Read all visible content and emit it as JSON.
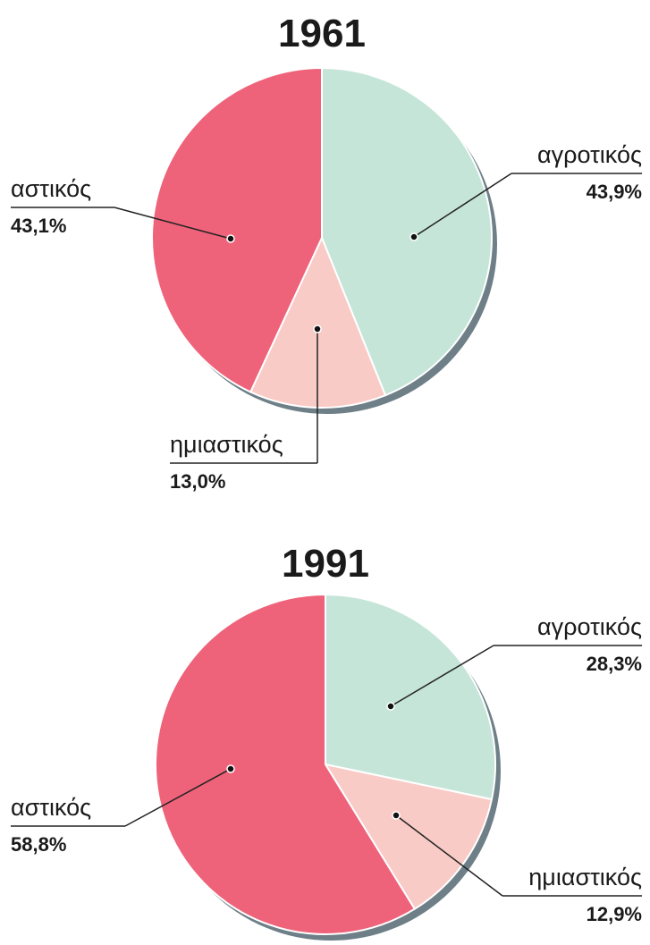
{
  "chart_data": [
    {
      "type": "pie",
      "title": "1961",
      "categories": [
        "αγροτικός",
        "ημιαστικός",
        "αστικός"
      ],
      "values": [
        43.9,
        13.0,
        43.1
      ],
      "value_labels": [
        "43,9%",
        "13,0%",
        "43,1%"
      ],
      "colors": [
        "#c6e5d9",
        "#f9cbc6",
        "#ee637a"
      ]
    },
    {
      "type": "pie",
      "title": "1991",
      "categories": [
        "αγροτικός",
        "ημιαστικός",
        "αστικός"
      ],
      "values": [
        28.3,
        12.9,
        58.8
      ],
      "value_labels": [
        "28,3%",
        "12,9%",
        "58,8%"
      ],
      "colors": [
        "#c6e5d9",
        "#f9cbc6",
        "#ee637a"
      ]
    }
  ]
}
